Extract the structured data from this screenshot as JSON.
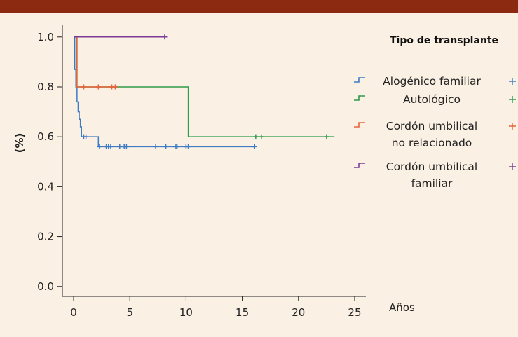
{
  "colors": {
    "background": "#faf0e3",
    "top_bar": "#8b2a11",
    "axis": "#222222"
  },
  "chart_data": {
    "type": "line",
    "subtype": "kaplan-meier step curves with censoring marks",
    "title": "",
    "ylabel": "(%)",
    "xlabel": "Años",
    "xlim": [
      -1,
      26
    ],
    "ylim": [
      -0.04,
      1.05
    ],
    "x_ticks": [
      0,
      5,
      10,
      15,
      20,
      25
    ],
    "y_ticks": [
      0.0,
      0.2,
      0.4,
      0.6,
      0.8,
      1.0
    ],
    "y_tick_labels": [
      "0.0",
      "0.2",
      "0.4",
      "0.6",
      "0.8",
      "1.0"
    ],
    "grid": false,
    "legend": {
      "title": "Tipo de transplante",
      "placement": "right",
      "entries": [
        {
          "lines": [
            "Alogénico familiar"
          ],
          "color": "#3d7cc4"
        },
        {
          "lines": [
            "Autológico"
          ],
          "color": "#2e9a4a"
        },
        {
          "lines": [
            "Cordón umbilical",
            "no relacionado"
          ],
          "color": "#e8623a"
        },
        {
          "lines": [
            "Cordón umbilical",
            "familiar"
          ],
          "color": "#7a3c96"
        }
      ]
    },
    "series": [
      {
        "color": "#3d7cc4",
        "steps": [
          [
            0,
            0.95
          ],
          [
            0.05,
            1.0
          ],
          [
            0.1,
            0.87
          ],
          [
            0.2,
            0.8
          ],
          [
            0.3,
            0.74
          ],
          [
            0.4,
            0.7
          ],
          [
            0.5,
            0.67
          ],
          [
            0.6,
            0.64
          ],
          [
            0.7,
            0.6
          ],
          [
            2.2,
            0.56
          ],
          [
            16.1,
            0.56
          ]
        ],
        "censor": [
          0.9,
          1.1,
          2.3,
          2.9,
          3.1,
          3.3,
          4.1,
          4.5,
          4.7,
          7.3,
          8.2,
          9.1,
          9.2,
          10.0,
          10.2,
          16.1
        ]
      },
      {
        "color": "#2e9a4a",
        "steps": [
          [
            0,
            1.0
          ],
          [
            0.3,
            0.8
          ],
          [
            10.2,
            0.6
          ],
          [
            23.2,
            0.6
          ]
        ],
        "censor": [
          16.2,
          16.7,
          22.5
        ]
      },
      {
        "color": "#e8623a",
        "steps": [
          [
            0,
            1.0
          ],
          [
            0.3,
            0.8
          ],
          [
            3.9,
            0.8
          ]
        ],
        "censor": [
          0.9,
          2.2,
          3.4,
          3.7
        ]
      },
      {
        "color": "#7a3c96",
        "steps": [
          [
            0,
            1.0
          ],
          [
            8.1,
            1.0
          ]
        ],
        "censor": [
          8.1
        ]
      }
    ]
  }
}
